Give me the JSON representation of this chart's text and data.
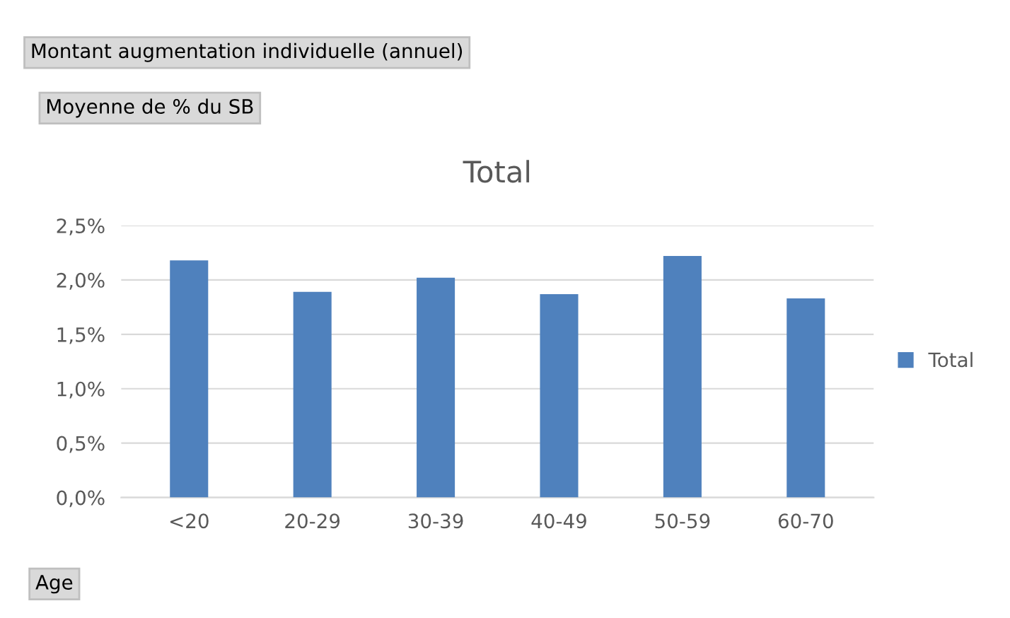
{
  "chart_data": {
    "type": "bar",
    "title": "Total",
    "categories": [
      "<20",
      "20-29",
      "30-39",
      "40-49",
      "50-59",
      "60-70"
    ],
    "series": [
      {
        "name": "Total",
        "color": "#4f81bd",
        "values": [
          2.18,
          1.89,
          2.02,
          1.87,
          2.22,
          1.83
        ]
      }
    ],
    "ylim": [
      0,
      2.5
    ],
    "yticks": [
      {
        "value": 0,
        "label": "0,0%"
      },
      {
        "value": 0.5,
        "label": "0,5%"
      },
      {
        "value": 1.0,
        "label": "1,0%"
      },
      {
        "value": 1.5,
        "label": "1,5%"
      },
      {
        "value": 2.0,
        "label": "2,0%"
      },
      {
        "value": 2.5,
        "label": "2,5%"
      }
    ],
    "grid": "y",
    "legend": "right",
    "annotations": [
      "Montant augmentation individuelle (annuel)",
      "Moyenne de % du SB",
      "Age"
    ]
  }
}
